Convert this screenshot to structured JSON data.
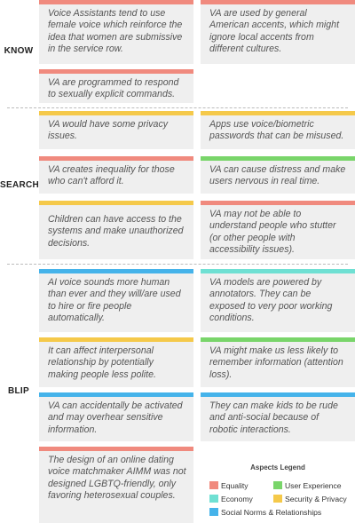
{
  "sections": [
    {
      "label": "KNOW"
    },
    {
      "label": "SEARCH"
    },
    {
      "label": "BLIP"
    }
  ],
  "cards": [
    {
      "text": "Voice Assistants tend to use female voice which reinforce the idea that women are submissive in the service row.",
      "aspect": "Equality"
    },
    {
      "text": "VA are used by general American accents, which might ignore local accents from different cultures.",
      "aspect": "Equality"
    },
    {
      "text": "VA are programmed to respond to sexually explicit commands.",
      "aspect": "Equality"
    },
    {
      "text": "VA would have some privacy issues.",
      "aspect": "Security & Privacy"
    },
    {
      "text": "Apps use voice/biometric passwords that can be misused.",
      "aspect": "Security & Privacy"
    },
    {
      "text": "VA creates inequality for those who can't afford it.",
      "aspect": "Equality"
    },
    {
      "text": "VA can cause distress and make users nervous in real time.",
      "aspect": "User Experience"
    },
    {
      "text": "Children can have access to the systems and make unauthorized decisions.",
      "aspect": "Security & Privacy"
    },
    {
      "text": "VA may not be able to understand people who stutter (or other people with accessibility issues).",
      "aspect": "Equality"
    },
    {
      "text": "AI voice sounds more human than ever and they will/are used to hire or fire people automatically.",
      "aspect": "Social Norms & Relationships"
    },
    {
      "text": "VA models are powered by annotators. They can be exposed to very poor working conditions.",
      "aspect": "Economy"
    },
    {
      "text": "It can affect interpersonal relationship by potentially making people less polite.",
      "aspect": "Security & Privacy"
    },
    {
      "text": "VA might make us less likely to remember information (attention loss).",
      "aspect": "User Experience"
    },
    {
      "text": "VA can accidentally be activated and may overhear sensitive information.",
      "aspect": "Social Norms & Relationships"
    },
    {
      "text": "They can make kids to be rude and anti-social because of robotic interactions.",
      "aspect": "Social Norms & Relationships"
    },
    {
      "text": "The design of an online dating voice matchmaker AIMM was not designed LGBTQ-friendly, only favoring heterosexual couples.",
      "aspect": "Equality"
    }
  ],
  "legend": {
    "title": "Aspects Legend",
    "items": [
      {
        "label": "Equality",
        "color": "#f08a7e"
      },
      {
        "label": "User Experience",
        "color": "#79d56a"
      },
      {
        "label": "Economy",
        "color": "#6fe0d3"
      },
      {
        "label": "Security & Privacy",
        "color": "#f5c94a"
      },
      {
        "label": "Social Norms & Relationships",
        "color": "#45b3ea"
      }
    ]
  }
}
